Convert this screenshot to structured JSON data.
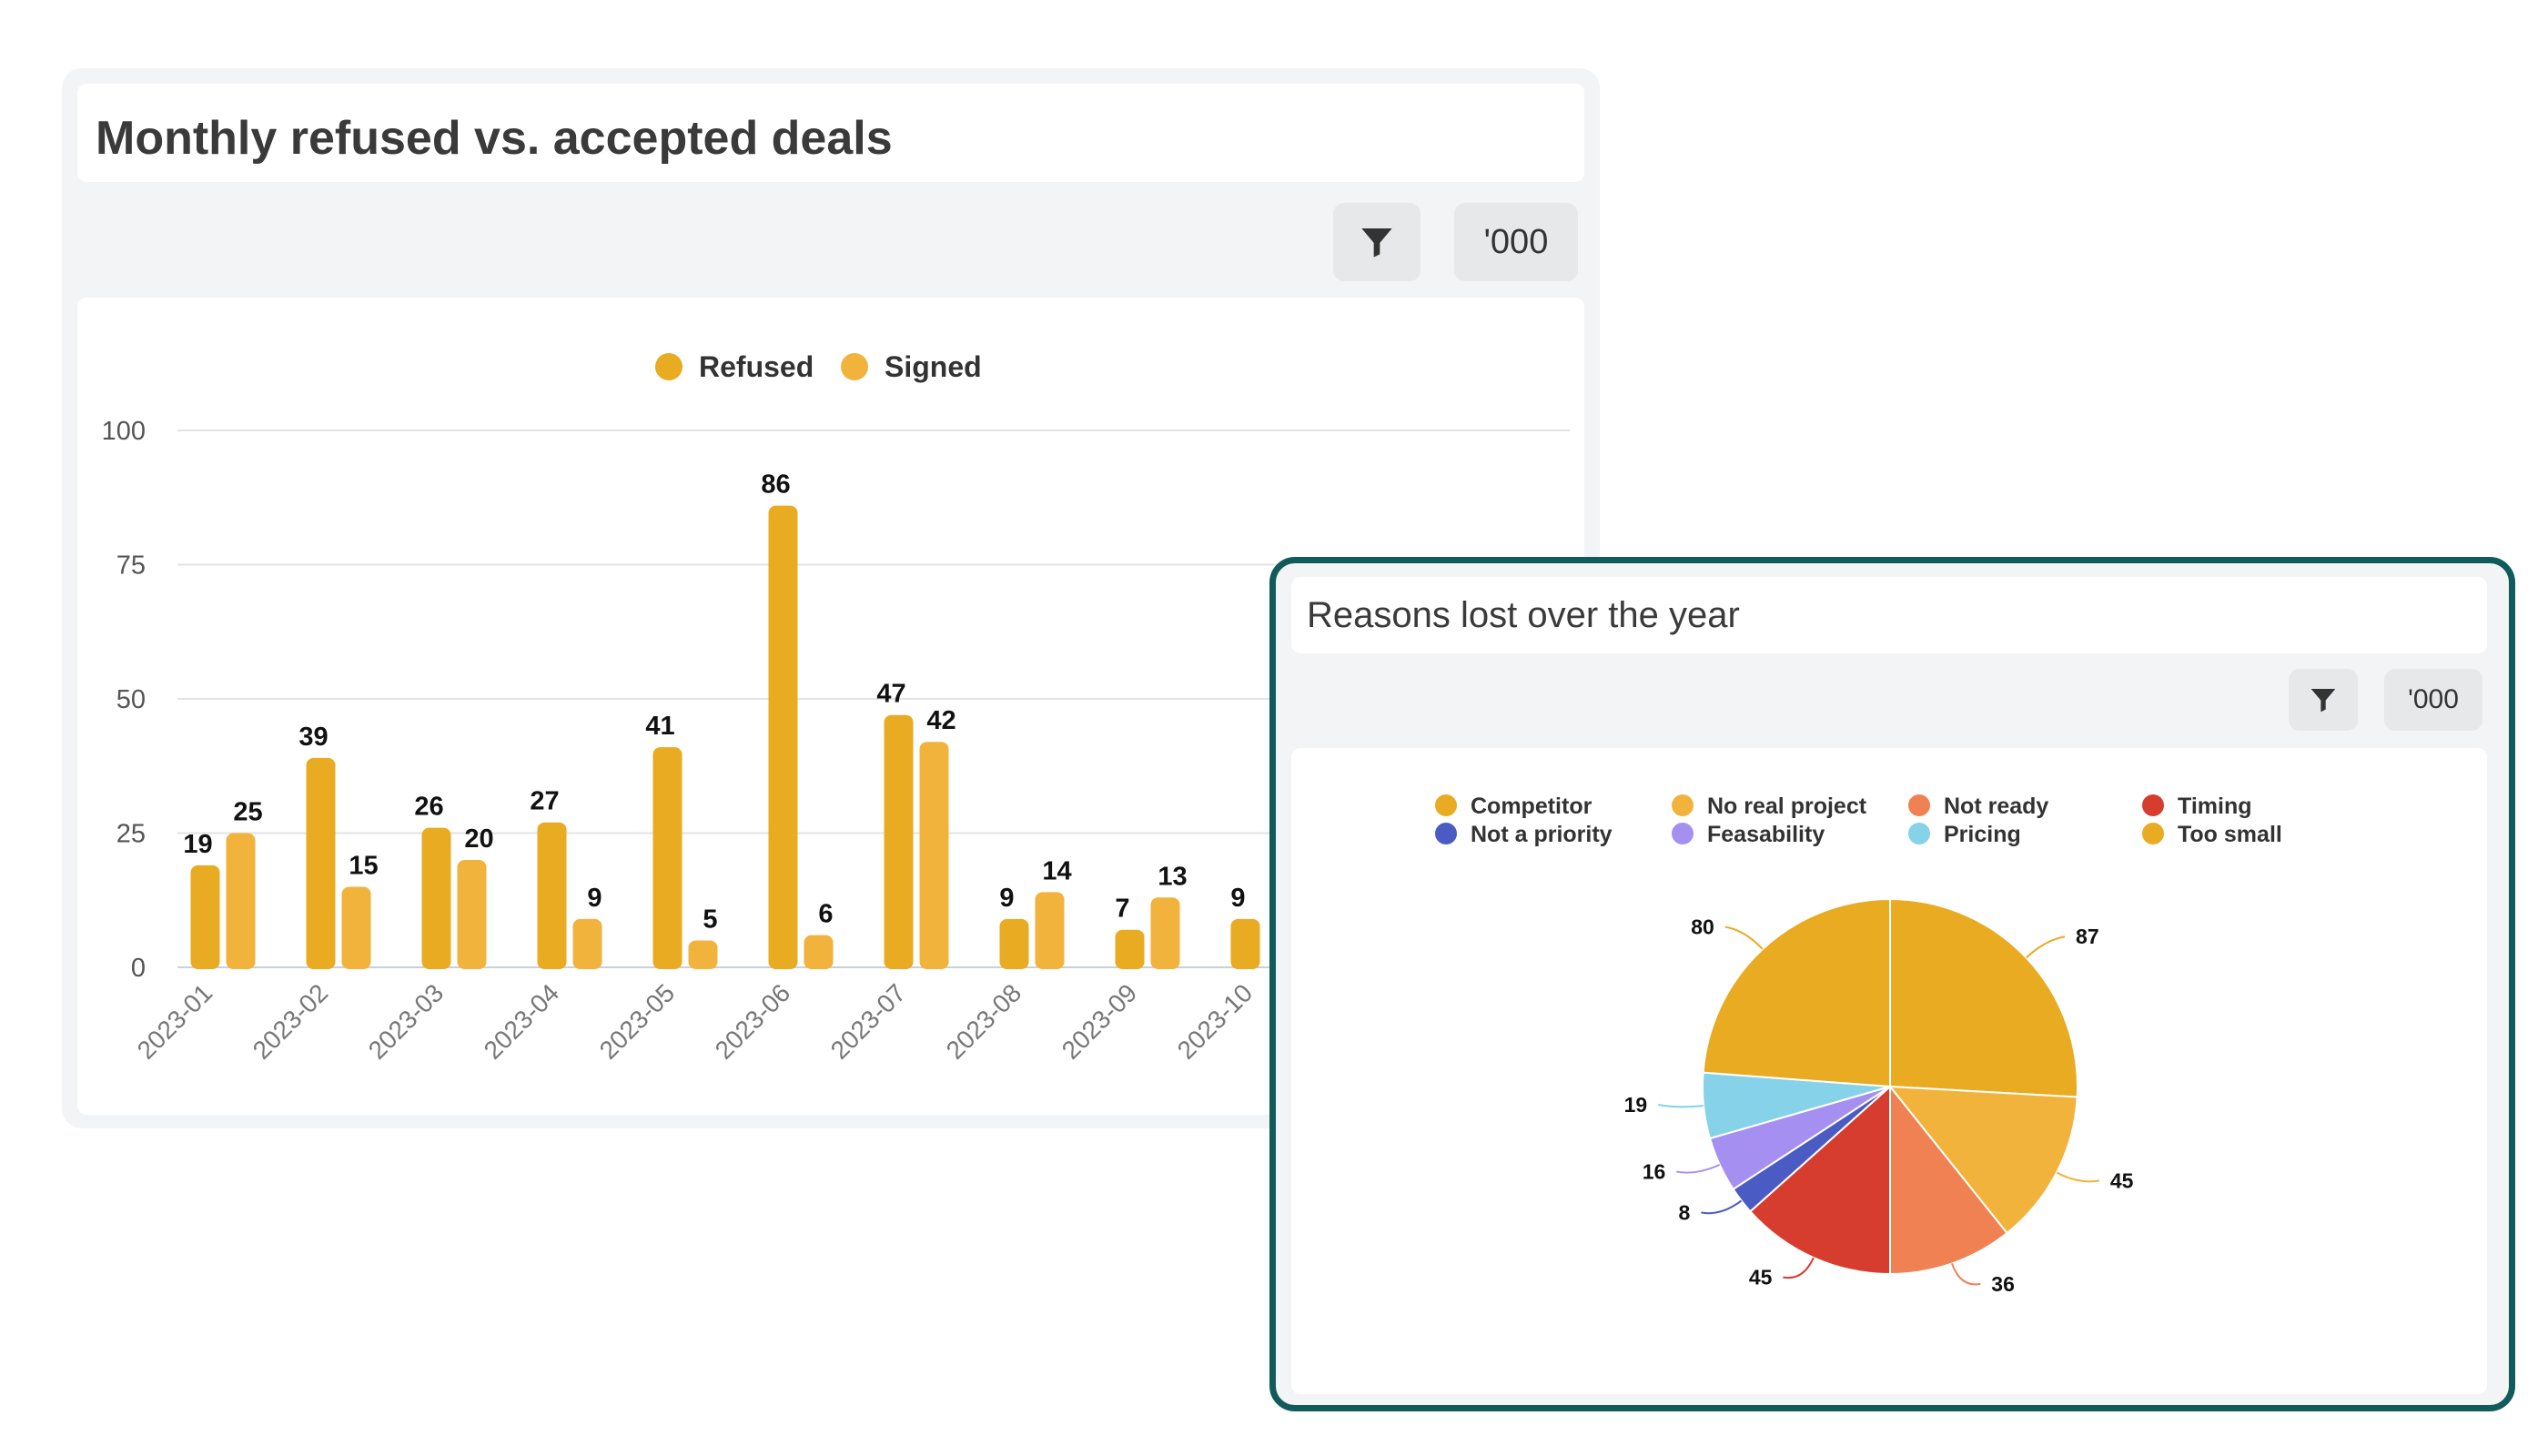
{
  "bar_card": {
    "title": "Monthly refused vs. accepted deals",
    "scale_label": "'000"
  },
  "pie_card": {
    "title": "Reasons lost over the year",
    "scale_label": "'000"
  },
  "colors": {
    "refused": "#e8ab22",
    "signed": "#f2b33d",
    "card_border": "#115b5b"
  },
  "chart_data": [
    {
      "type": "bar",
      "title": "Monthly refused vs. accepted deals",
      "categories": [
        "2023-01",
        "2023-02",
        "2023-03",
        "2023-04",
        "2023-05",
        "2023-06",
        "2023-07",
        "2023-08",
        "2023-09",
        "2023-10"
      ],
      "series": [
        {
          "name": "Refused",
          "values": [
            19,
            39,
            26,
            27,
            41,
            86,
            47,
            9,
            7,
            9
          ]
        },
        {
          "name": "Signed",
          "values": [
            25,
            15,
            20,
            9,
            5,
            6,
            42,
            14,
            13,
            null
          ]
        }
      ],
      "y_ticks": [
        "0",
        "25",
        "50",
        "75",
        "100"
      ],
      "ylim": [
        0,
        100
      ],
      "legend_position": "top-center",
      "grid": true
    },
    {
      "type": "pie",
      "title": "Reasons lost over the year",
      "slices": [
        {
          "label": "Competitor",
          "value": 87,
          "color": "#e8ab22"
        },
        {
          "label": "No real project",
          "value": 45,
          "color": "#f2b33d"
        },
        {
          "label": "Not ready",
          "value": 36,
          "color": "#ef8152"
        },
        {
          "label": "Timing",
          "value": 45,
          "color": "#d63d2e"
        },
        {
          "label": "Not a priority",
          "value": 8,
          "color": "#4a5bc4"
        },
        {
          "label": "Feasability",
          "value": 16,
          "color": "#a58ff0"
        },
        {
          "label": "Pricing",
          "value": 19,
          "color": "#86d2e8"
        },
        {
          "label": "Too small",
          "value": 80,
          "color": "#e8ab22"
        }
      ],
      "legend_position": "top"
    }
  ]
}
